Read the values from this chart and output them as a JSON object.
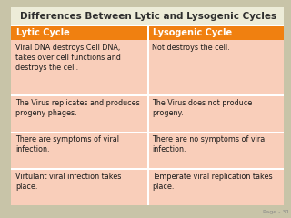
{
  "title": "Differences Between Lytic and Lysogenic Cycles",
  "title_fontsize": 7.5,
  "title_color": "#2E2E2E",
  "title_bg": "#EDECD8",
  "header": [
    "Lytic Cycle",
    "Lysogenic Cycle"
  ],
  "header_bg": "#F08010",
  "header_fg": "#FFFFFF",
  "header_fontsize": 7,
  "rows": [
    [
      "Viral DNA destroys Cell DNA,\ntakes over cell functions and\ndestroys the cell.",
      "Not destroys the cell."
    ],
    [
      "The Virus replicates and produces\nprogeny phages.",
      "The Virus does not produce\nprogeny."
    ],
    [
      "There are symptoms of viral\ninfection.",
      "There are no symptoms of viral\ninfection."
    ],
    [
      "Virtulant viral infection takes\nplace.",
      "Temperate viral replication takes\nplace."
    ]
  ],
  "row_bg": "#F9CEBA",
  "row_divider": "#FFFFFF",
  "cell_fontsize": 5.8,
  "cell_text_color": "#1A1A1A",
  "footer_text": "Page - 31",
  "footer_fontsize": 4.5,
  "footer_color": "#888888",
  "bg_color": "#EDECD8",
  "left_accent": "#E07010",
  "fig_bg": "#C8C4A8"
}
